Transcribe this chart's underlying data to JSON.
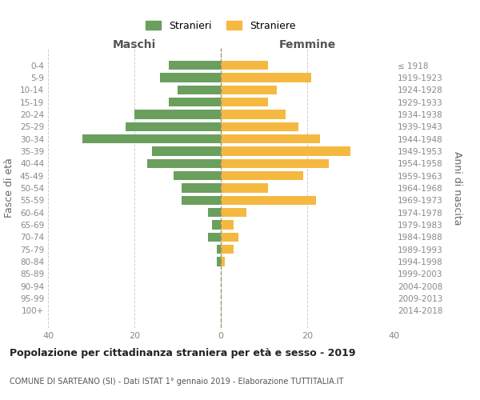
{
  "age_groups": [
    "0-4",
    "5-9",
    "10-14",
    "15-19",
    "20-24",
    "25-29",
    "30-34",
    "35-39",
    "40-44",
    "45-49",
    "50-54",
    "55-59",
    "60-64",
    "65-69",
    "70-74",
    "75-79",
    "80-84",
    "85-89",
    "90-94",
    "95-99",
    "100+"
  ],
  "birth_years": [
    "2014-2018",
    "2009-2013",
    "2004-2008",
    "1999-2003",
    "1994-1998",
    "1989-1993",
    "1984-1988",
    "1979-1983",
    "1974-1978",
    "1969-1973",
    "1964-1968",
    "1959-1963",
    "1954-1958",
    "1949-1953",
    "1944-1948",
    "1939-1943",
    "1934-1938",
    "1929-1933",
    "1924-1928",
    "1919-1923",
    "≤ 1918"
  ],
  "maschi": [
    12,
    14,
    10,
    12,
    20,
    22,
    32,
    16,
    17,
    11,
    9,
    9,
    3,
    2,
    3,
    1,
    1,
    0,
    0,
    0,
    0
  ],
  "femmine": [
    11,
    21,
    13,
    11,
    15,
    18,
    23,
    30,
    25,
    19,
    11,
    22,
    6,
    3,
    4,
    3,
    1,
    0,
    0,
    0,
    0
  ],
  "color_maschi": "#6a9f5e",
  "color_femmine": "#f5b942",
  "title": "Popolazione per cittadinanza straniera per età e sesso - 2019",
  "subtitle": "COMUNE DI SARTEANO (SI) - Dati ISTAT 1° gennaio 2019 - Elaborazione TUTTITALIA.IT",
  "ylabel_left": "Fasce di età",
  "ylabel_right": "Anni di nascita",
  "xlabel_maschi": "Maschi",
  "xlabel_femmine": "Femmine",
  "legend_maschi": "Stranieri",
  "legend_femmine": "Straniere",
  "xlim": 40,
  "background_color": "#ffffff",
  "grid_color": "#d0d0d0"
}
